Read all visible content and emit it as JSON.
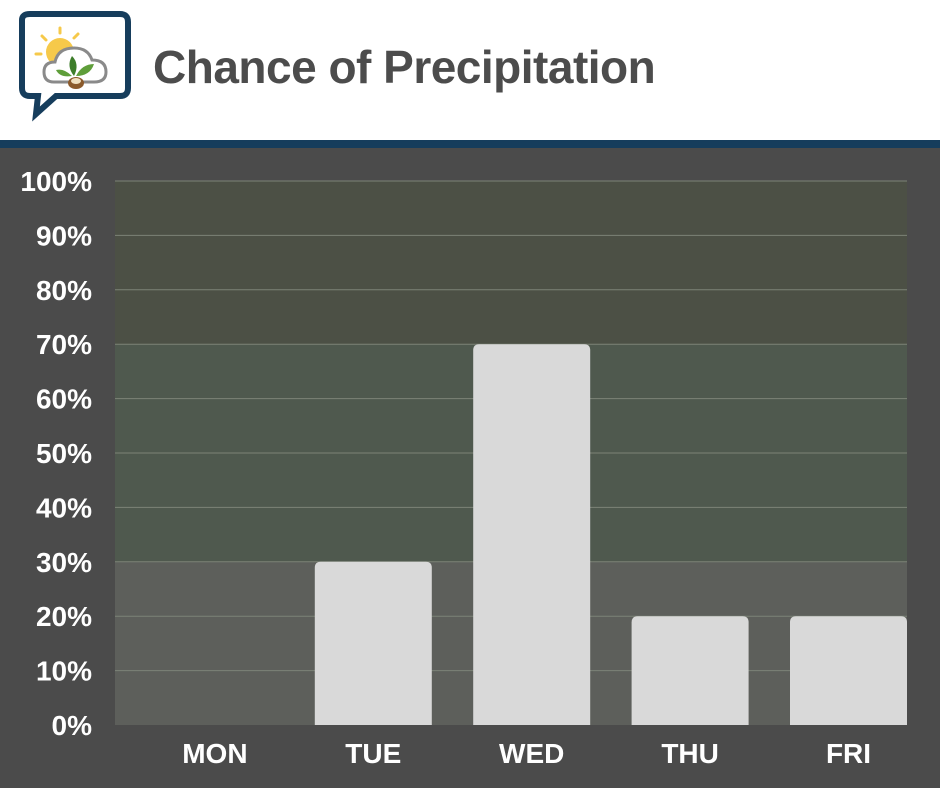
{
  "header": {
    "title": "Chance of Precipitation",
    "logo_icon": "weather-cloud-sun-leaf-icon"
  },
  "colors": {
    "header_rule": "#163d5c",
    "background": "#4b4b4b",
    "band_high": "#4c5045",
    "band_mid": "#4f594e",
    "band_low": "#5d5f5b",
    "bar": "#d9d9d9"
  },
  "chart_data": {
    "type": "bar",
    "title": "Chance of Precipitation",
    "categories": [
      "MON",
      "TUE",
      "WED",
      "THU",
      "FRI"
    ],
    "values": [
      0,
      30,
      70,
      20,
      20
    ],
    "ylim": [
      0,
      100
    ],
    "yticks": [
      0,
      10,
      20,
      30,
      40,
      50,
      60,
      70,
      80,
      90,
      100
    ],
    "ytick_labels": [
      "0%",
      "10%",
      "20%",
      "30%",
      "40%",
      "50%",
      "60%",
      "70%",
      "80%",
      "90%",
      "100%"
    ],
    "xlabel": "",
    "ylabel": "",
    "grid": true,
    "legend": "none",
    "bands": [
      {
        "from": 0,
        "to": 30,
        "color": "#5d5f5b"
      },
      {
        "from": 30,
        "to": 70,
        "color": "#4f594e"
      },
      {
        "from": 70,
        "to": 100,
        "color": "#4c5045"
      }
    ]
  }
}
